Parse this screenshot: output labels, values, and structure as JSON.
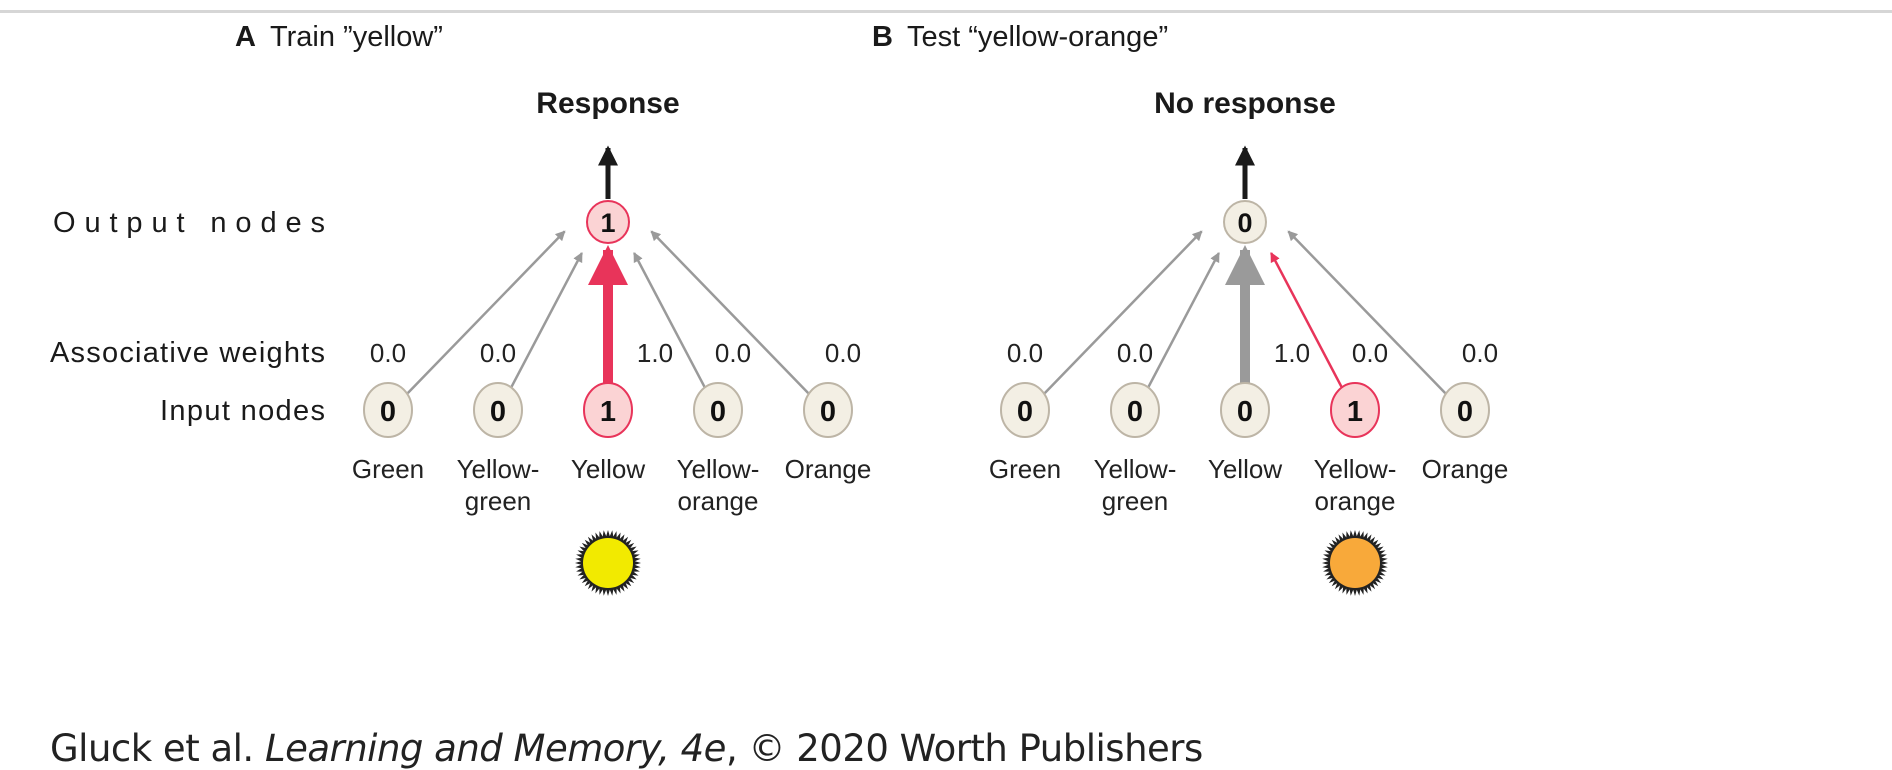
{
  "row_labels": {
    "output": "Output nodes",
    "weights": "Associative weights",
    "input": "Input nodes"
  },
  "panels": [
    {
      "letter": "A",
      "title": "Train ”yellow”",
      "response": "Response",
      "output_value": "1",
      "output_active": true,
      "stimulus_color": "#f2ea00",
      "inputs": [
        {
          "label1": "Green",
          "label2": "",
          "value": "0",
          "weight": "0.0",
          "active": false
        },
        {
          "label1": "Yellow-",
          "label2": "green",
          "value": "0",
          "weight": "0.0",
          "active": false
        },
        {
          "label1": "Yellow",
          "label2": "",
          "value": "1",
          "weight": "1.0",
          "active": true
        },
        {
          "label1": "Yellow-",
          "label2": "orange",
          "value": "0",
          "weight": "0.0",
          "active": false
        },
        {
          "label1": "Orange",
          "label2": "",
          "value": "0",
          "weight": "0.0",
          "active": false
        }
      ]
    },
    {
      "letter": "B",
      "title": "Test “yellow-orange”",
      "response": "No response",
      "output_value": "0",
      "output_active": false,
      "stimulus_color": "#f8a93a",
      "inputs": [
        {
          "label1": "Green",
          "label2": "",
          "value": "0",
          "weight": "0.0",
          "active": false
        },
        {
          "label1": "Yellow-",
          "label2": "green",
          "value": "0",
          "weight": "0.0",
          "active": false
        },
        {
          "label1": "Yellow",
          "label2": "",
          "value": "0",
          "weight": "1.0",
          "active": false
        },
        {
          "label1": "Yellow-",
          "label2": "orange",
          "value": "1",
          "weight": "0.0",
          "active": true
        },
        {
          "label1": "Orange",
          "label2": "",
          "value": "0",
          "weight": "0.0",
          "active": false
        }
      ]
    }
  ],
  "caption": {
    "authors": "Gluck et al. ",
    "book": "Learning and Memory, 4e",
    "rest": ", © 2020 Worth Publishers"
  },
  "colors": {
    "active_fill": "#fbd3d4",
    "active_stroke": "#e8345a",
    "inactive_fill": "#f3efe4",
    "inactive_stroke": "#bdb5a6",
    "arrow_gray": "#9a9a9a",
    "arrow_black": "#1a1a1a"
  }
}
